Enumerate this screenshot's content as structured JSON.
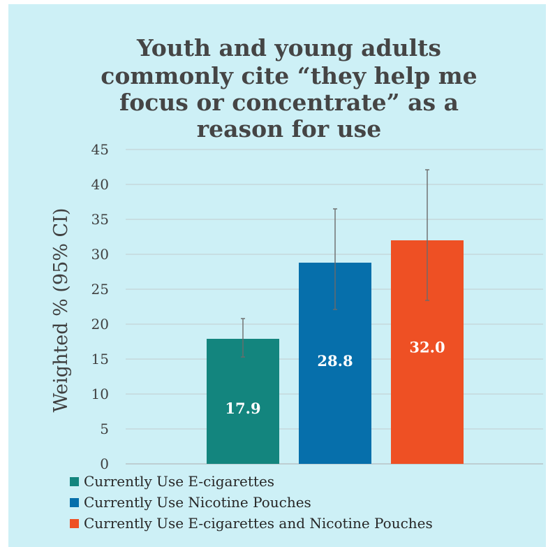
{
  "chart_data": {
    "type": "bar",
    "title_lines": [
      "Youth and young adults",
      "commonly cite “they help me",
      "focus or concentrate” as a",
      "reason for use"
    ],
    "ylabel": "Weighted % (95% CI)",
    "xlabel": "",
    "ylim": [
      0,
      45
    ],
    "yticks": [
      "0",
      "5",
      "10",
      "15",
      "20",
      "25",
      "30",
      "35",
      "40",
      "45"
    ],
    "grid": true,
    "legend_position": "bottom-left",
    "series": [
      {
        "name": "Currently Use E-cigarettes",
        "value": 17.9,
        "label": "17.9",
        "ci": [
          15.3,
          20.8
        ],
        "color": "#13857e"
      },
      {
        "name": "Currently Use Nicotine Pouches",
        "value": 28.8,
        "label": "28.8",
        "ci": [
          22.1,
          36.5
        ],
        "color": "#066fab"
      },
      {
        "name": "Currently Use E-cigarettes and Nicotine Pouches",
        "value": 32.0,
        "label": "32.0",
        "ci": [
          23.4,
          42.1
        ],
        "color": "#ee5024"
      }
    ]
  }
}
